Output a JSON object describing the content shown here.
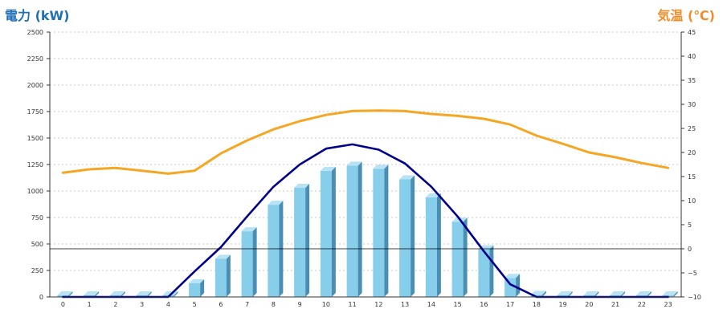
{
  "chart_data": {
    "type": "bar",
    "categories": [
      "0",
      "1",
      "2",
      "3",
      "4",
      "5",
      "6",
      "7",
      "8",
      "9",
      "10",
      "11",
      "12",
      "13",
      "14",
      "15",
      "16",
      "17",
      "18",
      "19",
      "20",
      "21",
      "22",
      "23"
    ],
    "y_left_label": "電力 (kW)",
    "y_right_label": "気温 (℃)",
    "y_left_ticks": [
      "0",
      "250",
      "500",
      "750",
      "1000",
      "1250",
      "1500",
      "1750",
      "2000",
      "2250",
      "2500"
    ],
    "y_right_ticks": [
      "−10",
      "−5",
      "0",
      "5",
      "10",
      "15",
      "20",
      "25",
      "30",
      "35",
      "40",
      "45"
    ],
    "ylim_left": [
      0,
      2500
    ],
    "ylim_right": [
      -10,
      45
    ],
    "grid": true,
    "colors": {
      "bar": "#87ceeb",
      "bar_side": "#4a8fb3",
      "bar_top": "#b7e3f5",
      "power_line": "#00008b",
      "temp_line": "#f5a623",
      "left_title": "#1f6fb5",
      "right_title": "#f28c28"
    },
    "series": [
      {
        "type": "bar",
        "axis": "left",
        "values": [
          0,
          0,
          0,
          0,
          0,
          130,
          360,
          620,
          870,
          1030,
          1190,
          1240,
          1210,
          1110,
          940,
          710,
          450,
          180,
          20,
          0,
          0,
          0,
          0,
          0
        ]
      },
      {
        "type": "line",
        "axis": "left",
        "values": [
          0,
          0,
          0,
          0,
          0,
          240,
          470,
          760,
          1040,
          1250,
          1400,
          1440,
          1390,
          1260,
          1040,
          760,
          430,
          120,
          0,
          0,
          0,
          0,
          0,
          0
        ]
      },
      {
        "type": "line",
        "axis": "right",
        "values": [
          15.8,
          16.5,
          16.8,
          16.2,
          15.6,
          16.2,
          19.8,
          22.5,
          24.8,
          26.5,
          27.8,
          28.6,
          28.7,
          28.6,
          28.0,
          27.6,
          27.0,
          25.8,
          23.5,
          21.8,
          20.0,
          19.0,
          17.8,
          16.8
        ]
      }
    ],
    "reference_line_right": 0
  }
}
